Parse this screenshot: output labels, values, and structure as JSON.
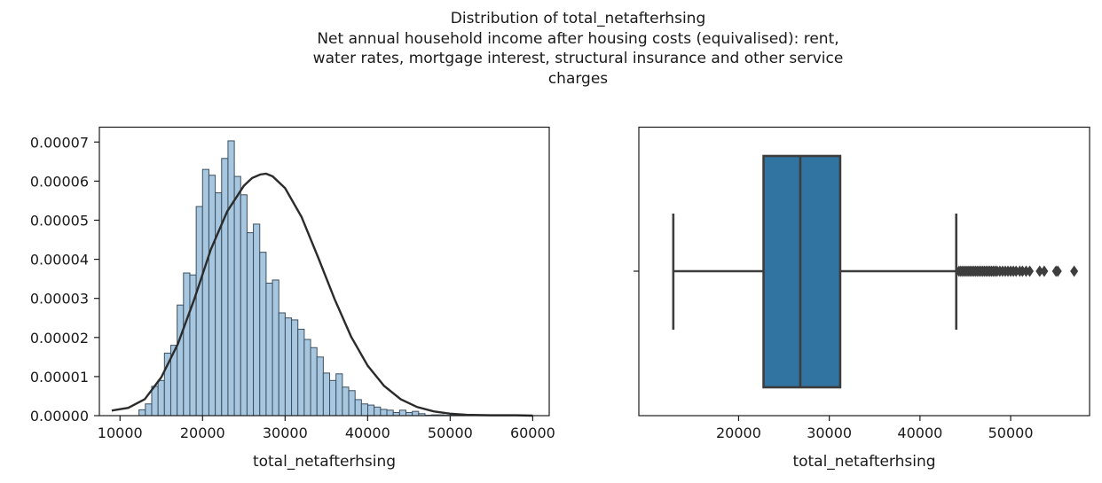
{
  "figure": {
    "title_lines": [
      "Distribution of total_netafterhsing",
      "Net annual household income after housing costs (equivalised): rent,",
      "water rates, mortgage interest, structural insurance and other service",
      "charges"
    ]
  },
  "chart_data": [
    {
      "type": "histogram",
      "xlabel": "total_netafterhsing",
      "ylabel": "",
      "xlim": [
        7500,
        62000
      ],
      "ylim": [
        0,
        7.38e-05
      ],
      "xticks": [
        10000,
        20000,
        30000,
        40000,
        50000,
        60000
      ],
      "xtick_labels": [
        "10000",
        "20000",
        "30000",
        "40000",
        "50000",
        "60000"
      ],
      "yticks": [
        0,
        1e-05,
        2e-05,
        3e-05,
        4e-05,
        5e-05,
        6e-05,
        7e-05
      ],
      "ytick_labels": [
        "0.00000",
        "0.00001",
        "0.00002",
        "0.00003",
        "0.00004",
        "0.00005",
        "0.00006",
        "0.00007"
      ],
      "bin_start": 12300,
      "bin_width": 770,
      "densities": [
        1.5e-06,
        3e-06,
        7.5e-06,
        9e-06,
        1.6e-05,
        1.8e-05,
        2.83e-05,
        3.65e-05,
        3.6e-05,
        5.35e-05,
        6.3e-05,
        6.15e-05,
        5.7e-05,
        6.58e-05,
        7.03e-05,
        6.12e-05,
        5.65e-05,
        4.68e-05,
        4.9e-05,
        4.18e-05,
        3.39e-05,
        3.47e-05,
        2.63e-05,
        2.5e-05,
        2.45e-05,
        2.21e-05,
        1.95e-05,
        1.74e-05,
        1.5e-05,
        1.09e-05,
        9e-06,
        1.07e-05,
        7.3e-06,
        6.4e-06,
        4.1e-06,
        3e-06,
        2.7e-06,
        2.2e-06,
        1.6e-06,
        1.4e-06,
        8e-07,
        1.4e-06,
        8e-07,
        1.1e-06,
        5e-07,
        1e-07,
        2e-07,
        2e-07,
        1e-07,
        2e-07,
        1e-07,
        1e-07,
        1e-07,
        1e-07,
        1e-07,
        1e-07
      ],
      "fit_curve": {
        "x": [
          9000,
          11000,
          13000,
          15000,
          17000,
          19000,
          21000,
          23000,
          25000,
          26000,
          27000,
          27700,
          28500,
          30000,
          32000,
          34000,
          36000,
          38000,
          40000,
          42000,
          44000,
          46000,
          48000,
          50000,
          52000,
          55000,
          58000,
          60000
        ],
        "y": [
          1.3e-06,
          2e-06,
          4.2e-06,
          9.8e-06,
          1.83e-05,
          2.98e-05,
          4.25e-05,
          5.23e-05,
          5.88e-05,
          6.08e-05,
          6.17e-05,
          6.19e-05,
          6.12e-05,
          5.82e-05,
          5.08e-05,
          4.05e-05,
          2.98e-05,
          2.02e-05,
          1.28e-05,
          7.6e-06,
          4.2e-06,
          2.2e-06,
          1.1e-06,
          5e-07,
          2e-07,
          1e-07,
          1e-07,
          0
        ]
      },
      "colors": {
        "bar_fill": "#a7c7e0",
        "bar_edge": "#3d4f5f",
        "curve": "#2b2b2b"
      }
    },
    {
      "type": "box",
      "xlabel": "total_netafterhsing",
      "xlim": [
        9000,
        58700
      ],
      "xticks": [
        20000,
        30000,
        40000,
        50000
      ],
      "xtick_labels": [
        "20000",
        "30000",
        "40000",
        "50000"
      ],
      "whisker_low": 12800,
      "q1": 22750,
      "median": 26800,
      "q3": 31200,
      "whisker_high": 44000,
      "outliers": [
        44300,
        44500,
        44700,
        44900,
        45100,
        45300,
        45500,
        45700,
        45900,
        46100,
        46300,
        46500,
        46700,
        46900,
        47100,
        47300,
        47500,
        47700,
        47900,
        48100,
        48300,
        48500,
        48800,
        49100,
        49400,
        49700,
        50000,
        50300,
        50600,
        51000,
        51300,
        51700,
        52100,
        53200,
        53700,
        55000,
        55200,
        57000
      ],
      "colors": {
        "box_fill": "#3274a1",
        "line": "#3d3d3d"
      }
    }
  ]
}
